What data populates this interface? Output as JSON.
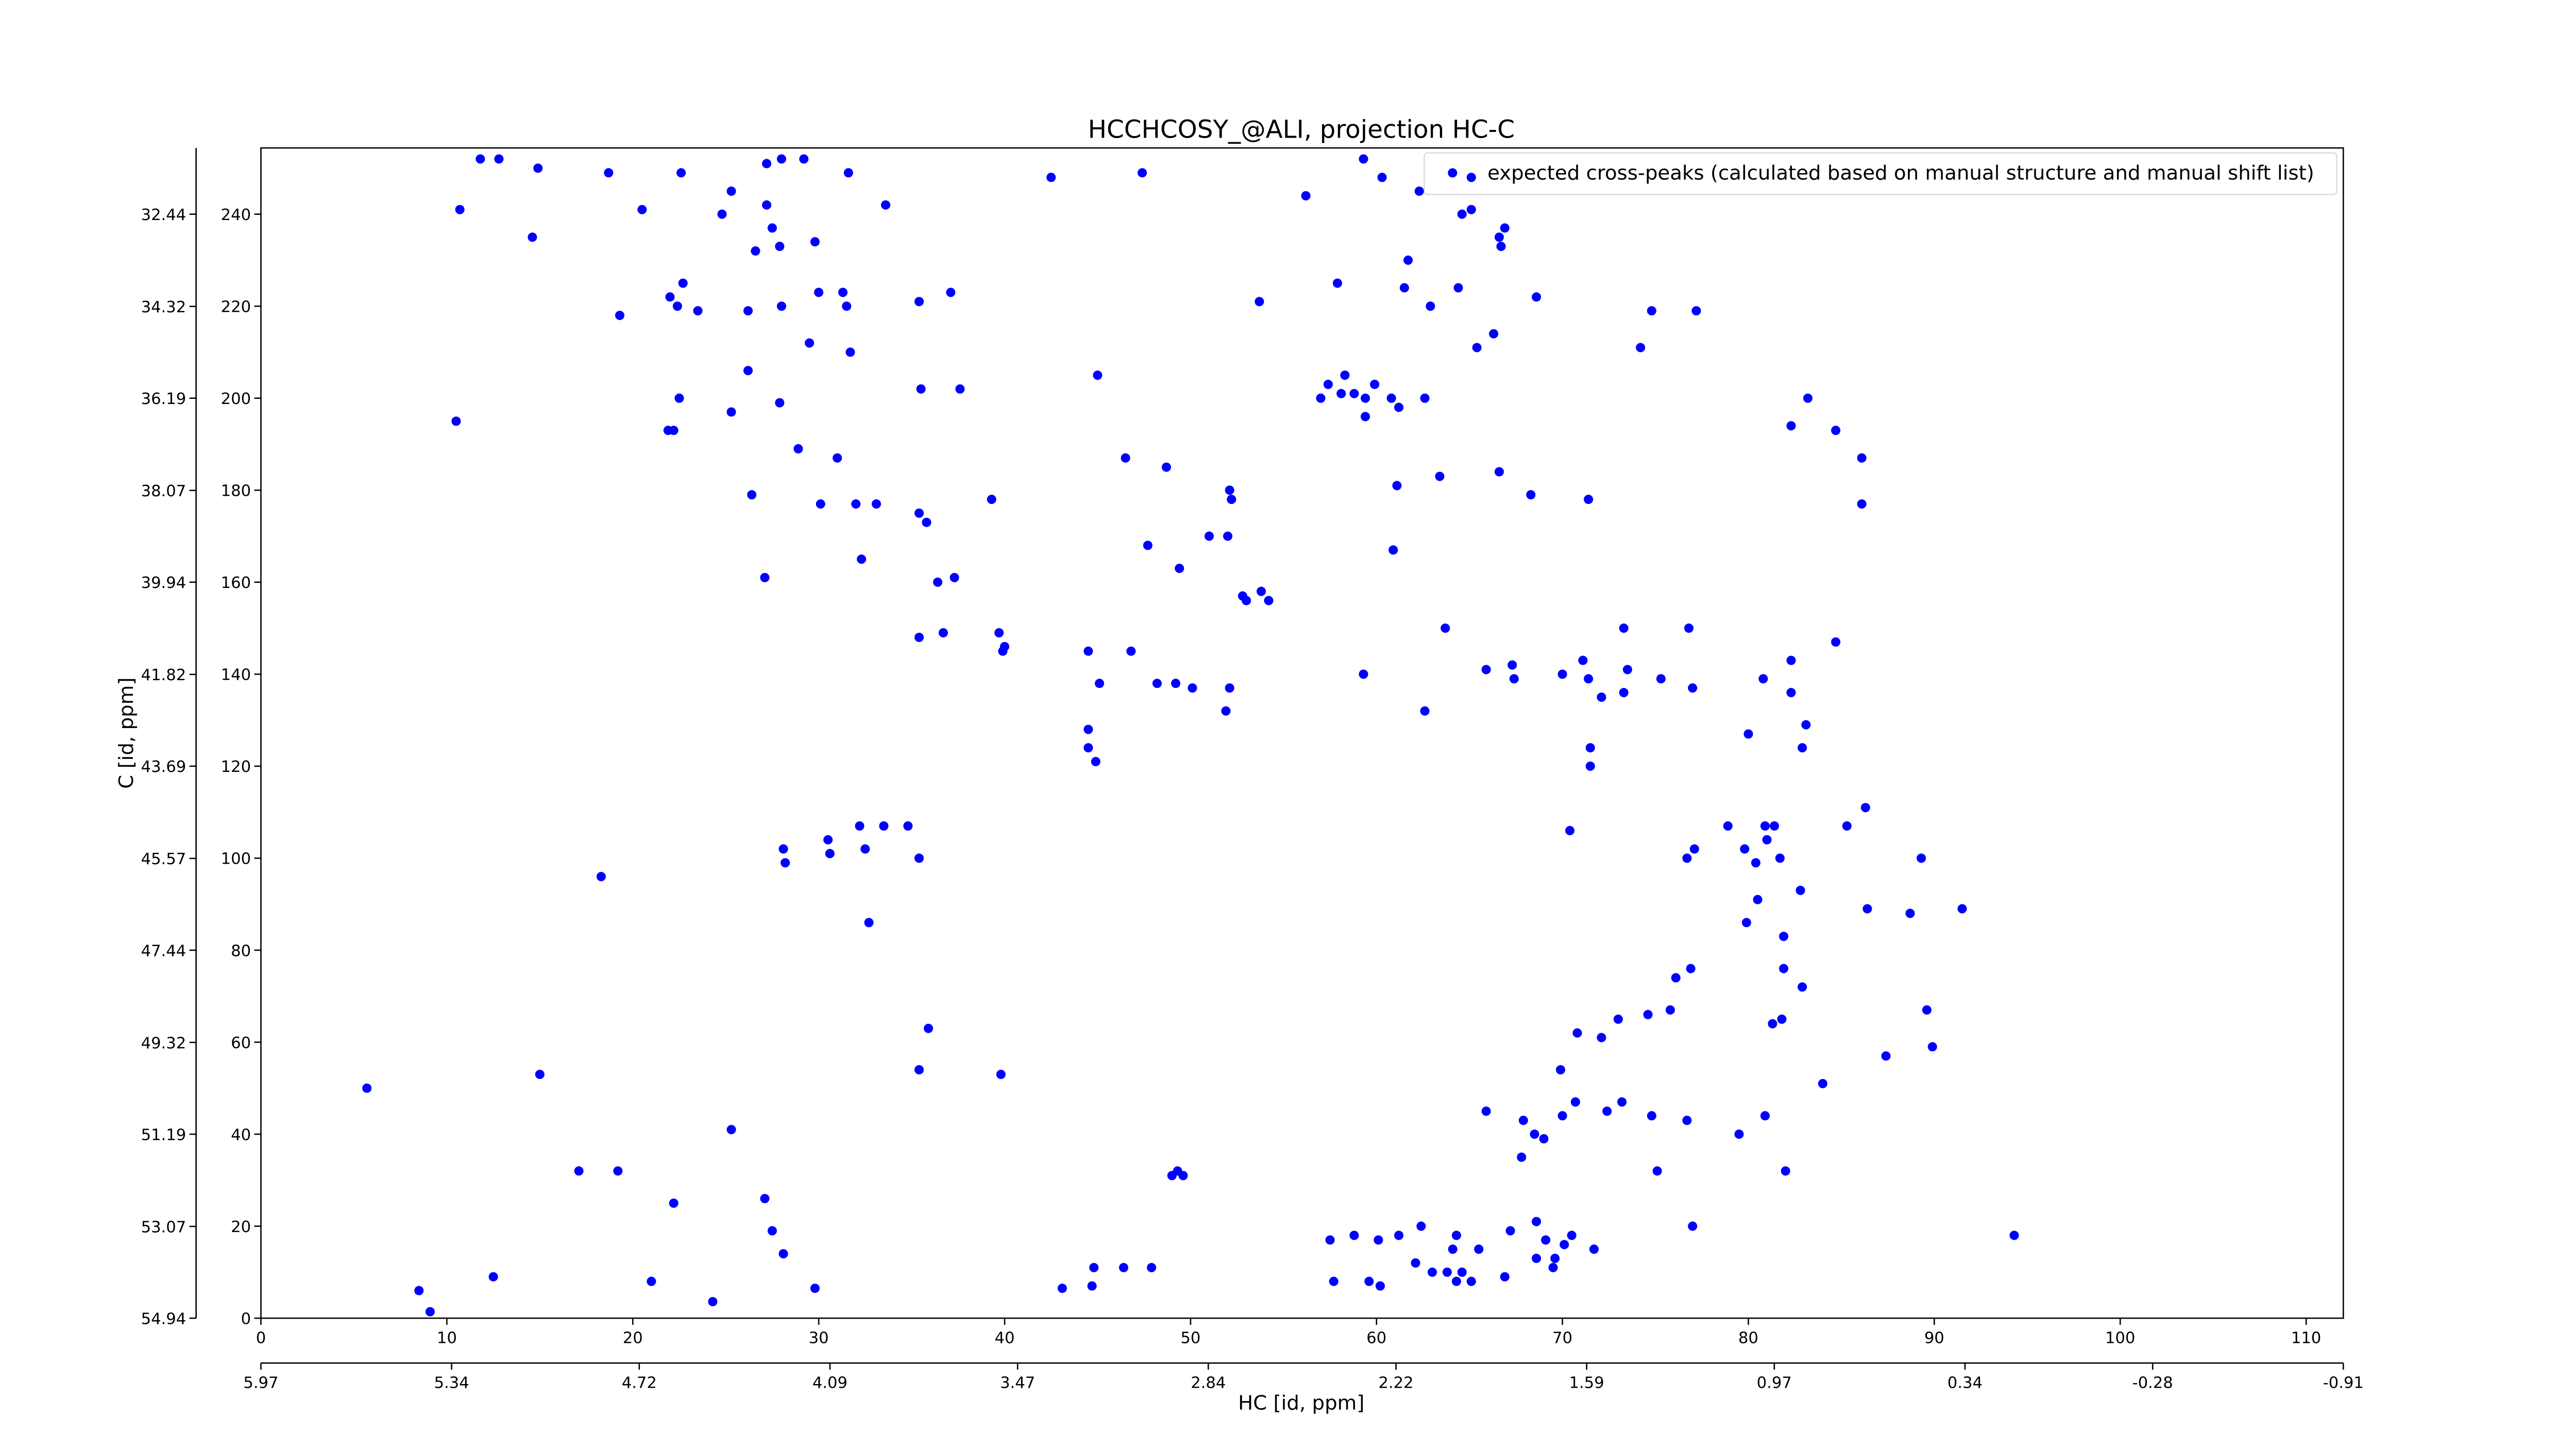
{
  "chart_data": {
    "type": "scatter",
    "title": "HCCHCOSY_@ALI, projection HC-C",
    "xlabel": "HC [id, ppm]",
    "ylabel": "C [id, ppm]",
    "xlim": [
      0,
      112
    ],
    "ylim": [
      0,
      254.4
    ],
    "xticks": [
      0,
      10,
      20,
      30,
      40,
      50,
      60,
      70,
      80,
      90,
      100,
      110
    ],
    "yticks": [
      0,
      20,
      40,
      60,
      80,
      100,
      120,
      140,
      160,
      180,
      200,
      220,
      240
    ],
    "x2lim": [
      5.97,
      -0.91
    ],
    "x2ticks": [
      5.97,
      5.34,
      4.72,
      4.09,
      3.47,
      2.84,
      2.22,
      1.59,
      0.97,
      0.34,
      -0.28,
      -0.91
    ],
    "y2lim": [
      54.94,
      31.09
    ],
    "y2ticks": [
      54.94,
      53.07,
      51.19,
      49.32,
      47.44,
      45.57,
      43.69,
      41.82,
      39.94,
      38.07,
      36.19,
      34.32,
      32.44
    ],
    "legend": "upper right",
    "series": [
      {
        "name": "expected cross-peaks (calculated based on manual structure and manual shift list)",
        "color": "#0000ff",
        "x": [
          11.8,
          12.8,
          14.9,
          10.7,
          14.6,
          18.7,
          20.5,
          22.6,
          25.3,
          24.8,
          27.2,
          27.2,
          28,
          29.2,
          31.6,
          33.6,
          27.5,
          27.9,
          26.6,
          29.8,
          22.7,
          22,
          22.4,
          23.5,
          26.2,
          28,
          30,
          31.3,
          31.5,
          19.3,
          35.4,
          37.1,
          29.5,
          31.7,
          26.2,
          22.5,
          25.3,
          21.9,
          22.2,
          10.5,
          27.9,
          35.5,
          37.6,
          28.9,
          31,
          26.4,
          30.1,
          32,
          33.1,
          35.4,
          35.8,
          39.3,
          32.3,
          27.1,
          36.4,
          37.3,
          35.4,
          36.7,
          39.7,
          39.9,
          40,
          45,
          46.5,
          48.7,
          52.1,
          52.2,
          47.7,
          51,
          52,
          49.4,
          53.8,
          52.8,
          53,
          54.2,
          44.5,
          46.8,
          45.1,
          48.2,
          49.2,
          50.1,
          52.1,
          51.9,
          44.5,
          44.5,
          44.9,
          32.2,
          30.5,
          30.6,
          32.5,
          33.5,
          34.8,
          35.4,
          28.1,
          28.2,
          18.3,
          32.7,
          35.9,
          39.8,
          15,
          5.7,
          35.4,
          25.3,
          17.1,
          19.2,
          22.2,
          27.1,
          27.5,
          28.1,
          21,
          12.5,
          8.5,
          9.1,
          24.3,
          29.8,
          43.1,
          44.8,
          46.4,
          47.9,
          44.7,
          49.3,
          49,
          49.6,
          42.5,
          47.4,
          56.2,
          59.3,
          60.3,
          62.3,
          65.1,
          64.6,
          65.1,
          66.9,
          66.6,
          66.7,
          61.7,
          53.7,
          57.9,
          61.5,
          62.9,
          64.4,
          66.3,
          65.4,
          68.6,
          57,
          57.4,
          58.1,
          58.8,
          59.4,
          59.9,
          60.8,
          61.2,
          62.6,
          59.4,
          58.3,
          74.8,
          77.2,
          74.2,
          61.1,
          63.4,
          66.6,
          68.3,
          71.4,
          60.9,
          59.3,
          62.6,
          63.7,
          65.9,
          67.3,
          67.4,
          70,
          71.1,
          71.4,
          73.3,
          73.5,
          72.1,
          73.3,
          75.3,
          76.8,
          77,
          71.5,
          71.5,
          80,
          80.8,
          82.3,
          82.3,
          84.7,
          83.1,
          82.9,
          70.4,
          77.1,
          76.7,
          78.9,
          79.8,
          80.4,
          80.9,
          81,
          81.4,
          81.7,
          80.5,
          82.8,
          85.3,
          86.3,
          89.3,
          86.4,
          88.7,
          91.5,
          79.9,
          81.9,
          81.9,
          82.9,
          76.9,
          76.1,
          75.8,
          74.6,
          73,
          72.1,
          70.8,
          81.3,
          81.8,
          87.4,
          89.9,
          89.6,
          84,
          80.9,
          79.5,
          76.7,
          73.2,
          72.4,
          74.8,
          67.9,
          68.5,
          69,
          70,
          70.7,
          69.9,
          77,
          82,
          94.3,
          75.1,
          65.9,
          67.8,
          58.8,
          60.1,
          61.2,
          62.4,
          64.3,
          64.1,
          62.1,
          63,
          63.8,
          64.6,
          65.1,
          64.3,
          65.5,
          67.2,
          68.6,
          69.1,
          70.1,
          70.5,
          71.7,
          69.5,
          68.6,
          57.5,
          57.7,
          59.6,
          60.2,
          66.9,
          69.6,
          83.2,
          82.3,
          84.7,
          86.1,
          86.1
        ],
        "y": [
          252,
          252,
          250,
          241,
          235,
          249,
          241,
          249,
          245,
          240,
          251,
          242,
          252,
          252,
          249,
          242,
          237,
          233,
          232,
          234,
          225,
          222,
          220,
          219,
          219,
          220,
          223,
          223,
          220,
          218,
          221,
          223,
          212,
          210,
          206,
          200,
          197,
          193,
          193,
          195,
          199,
          202,
          202,
          189,
          187,
          179,
          177,
          177,
          177,
          175,
          173,
          178,
          165,
          161,
          160,
          161,
          148,
          149,
          149,
          145,
          146,
          205,
          187,
          185,
          180,
          178,
          168,
          170,
          170,
          163,
          158,
          157,
          156,
          156,
          145,
          145,
          138,
          138,
          138,
          137,
          137,
          132,
          128,
          124,
          121,
          107,
          104,
          101,
          102,
          107,
          107,
          100,
          102,
          99,
          96,
          86,
          63,
          53,
          53,
          50,
          54,
          41,
          32,
          32,
          25,
          26,
          19,
          14,
          8,
          9,
          6,
          1.4,
          3.6,
          6.5,
          6.5,
          11,
          11,
          11,
          7,
          32,
          31,
          31,
          248,
          249,
          244,
          252,
          248,
          245,
          248,
          240,
          241,
          237,
          235,
          233,
          230,
          221,
          225,
          224,
          220,
          224,
          214,
          211,
          222,
          200,
          203,
          201,
          201,
          200,
          203,
          200,
          198,
          200,
          196,
          205,
          219,
          219,
          211,
          181,
          183,
          184,
          179,
          178,
          167,
          140,
          132,
          150,
          141,
          142,
          139,
          140,
          143,
          139,
          150,
          141,
          135,
          136,
          139,
          150,
          137,
          124,
          120,
          127,
          139,
          136,
          143,
          147,
          129,
          124,
          106,
          102,
          100,
          107,
          102,
          99,
          107,
          104,
          107,
          100,
          91,
          93,
          107,
          111,
          100,
          89,
          88,
          89,
          86,
          83,
          76,
          72,
          76,
          74,
          67,
          66,
          65,
          61,
          62,
          64,
          65,
          57,
          59,
          67,
          51,
          44,
          40,
          43,
          47,
          45,
          44,
          43,
          40,
          39,
          44,
          47,
          54,
          20,
          32,
          18,
          32,
          45,
          35,
          18,
          17,
          18,
          20,
          18,
          15,
          12,
          10,
          10,
          10,
          8,
          8,
          15,
          19,
          21,
          17,
          16,
          18,
          15,
          11,
          13,
          17,
          8,
          8,
          7,
          9,
          13,
          200,
          194,
          193,
          187,
          177
        ]
      }
    ]
  }
}
